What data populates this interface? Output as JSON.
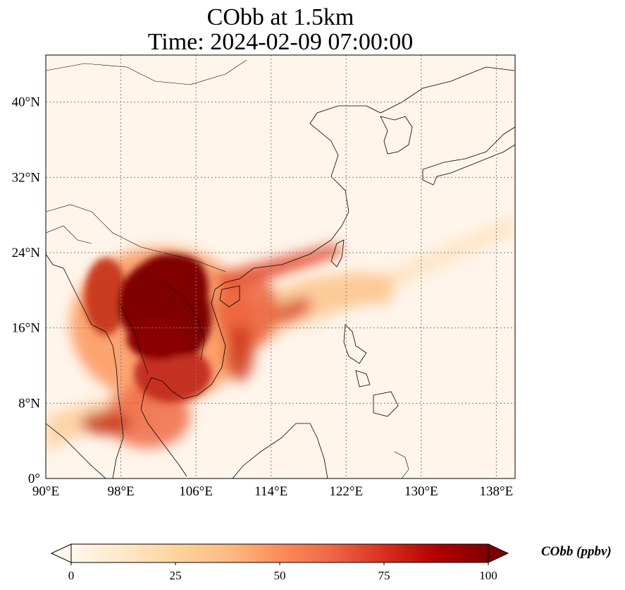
{
  "title": {
    "line1": "CObb at 1.5km",
    "line2": "Time: 2024-02-09 07:00:00"
  },
  "map": {
    "projection": "PlateCarree",
    "lon_range": [
      90,
      140
    ],
    "lat_range": [
      0,
      45
    ],
    "x_ticks": [
      {
        "value": 90,
        "label": "90°E"
      },
      {
        "value": 98,
        "label": "98°E"
      },
      {
        "value": 106,
        "label": "106°E"
      },
      {
        "value": 114,
        "label": "114°E"
      },
      {
        "value": 122,
        "label": "122°E"
      },
      {
        "value": 130,
        "label": "130°E"
      },
      {
        "value": 138,
        "label": "138°E"
      }
    ],
    "y_ticks": [
      {
        "value": 0,
        "label": "0°"
      },
      {
        "value": 8,
        "label": "8°N"
      },
      {
        "value": 16,
        "label": "16°N"
      },
      {
        "value": 24,
        "label": "24°N"
      },
      {
        "value": 32,
        "label": "32°N"
      },
      {
        "value": 40,
        "label": "40°N"
      }
    ],
    "gridlines": "dotted",
    "coastlines": true,
    "borders": true,
    "field": {
      "variable": "CObb",
      "level": "1.5km",
      "background_color": "#fff5eb",
      "plumes": [
        {
          "region": "Indochina core",
          "level": 100
        },
        {
          "region": "Laos / northern Vietnam",
          "level": 100
        },
        {
          "region": "Myanmar east",
          "level": 70
        },
        {
          "region": "Cambodia",
          "level": 75
        },
        {
          "region": "Gulf of Thailand",
          "level": 65
        },
        {
          "region": "Malay Peninsula",
          "level": 55
        },
        {
          "region": "Andaman Sea",
          "level": 45
        },
        {
          "region": "South China coast",
          "level": 55
        },
        {
          "region": "South China Sea band",
          "level": 45
        },
        {
          "region": "Luzon Strait / Philippine Sea",
          "level": 25
        },
        {
          "region": "NW Pacific streak",
          "level": 15
        }
      ]
    }
  },
  "colorbar": {
    "label": "CObb (ppbv)",
    "min": 0,
    "max": 100,
    "extend": "both",
    "cmap": "OrRd",
    "ticks": [
      {
        "value": 0,
        "label": "0"
      },
      {
        "value": 25,
        "label": "25"
      },
      {
        "value": 50,
        "label": "50"
      },
      {
        "value": 75,
        "label": "75"
      },
      {
        "value": 100,
        "label": "100"
      }
    ],
    "stops": [
      "#fff7ec",
      "#fee8c8",
      "#fdd49e",
      "#fdbb84",
      "#fc8d59",
      "#ef6548",
      "#d7301f",
      "#b30000",
      "#7f0000"
    ]
  }
}
